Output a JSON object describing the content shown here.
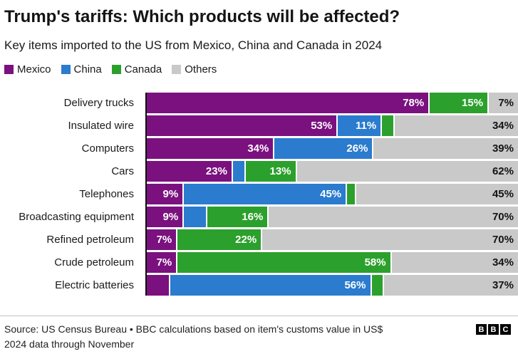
{
  "chart_data": {
    "type": "bar",
    "variant": "horizontal-stacked-100",
    "title": "Trump's tariffs: Which products will be affected?",
    "subtitle": "Key items imported to the US from Mexico, China and Canada in 2024",
    "unit": "%",
    "legend_position": "top-left",
    "legend": [
      {
        "label": "Mexico",
        "color": "#7a117f"
      },
      {
        "label": "China",
        "color": "#2b7bce"
      },
      {
        "label": "Canada",
        "color": "#2ca02c"
      },
      {
        "label": "Others",
        "color": "#c9c9c9"
      }
    ],
    "rows": [
      {
        "category": "Delivery trucks",
        "segments": [
          {
            "series": "Mexico",
            "value": 78,
            "label": "78%"
          },
          {
            "series": "Canada",
            "value": 15,
            "label": "15%"
          },
          {
            "series": "Others",
            "value": 7,
            "label": "7%"
          }
        ]
      },
      {
        "category": "Insulated wire",
        "segments": [
          {
            "series": "Mexico",
            "value": 53,
            "label": "53%"
          },
          {
            "series": "China",
            "value": 11,
            "label": "11%"
          },
          {
            "series": "Canada",
            "value": 2
          },
          {
            "series": "Others",
            "value": 34,
            "label": "34%"
          }
        ]
      },
      {
        "category": "Computers",
        "segments": [
          {
            "series": "Mexico",
            "value": 34,
            "label": "34%"
          },
          {
            "series": "China",
            "value": 26,
            "label": "26%"
          },
          {
            "series": "Others",
            "value": 39,
            "label": "39%"
          }
        ]
      },
      {
        "category": "Cars",
        "segments": [
          {
            "series": "Mexico",
            "value": 23,
            "label": "23%"
          },
          {
            "series": "China",
            "value": 2
          },
          {
            "series": "Canada",
            "value": 13,
            "label": "13%"
          },
          {
            "series": "Others",
            "value": 62,
            "label": "62%"
          }
        ]
      },
      {
        "category": "Telephones",
        "segments": [
          {
            "series": "Mexico",
            "value": 9,
            "label": "9%"
          },
          {
            "series": "China",
            "value": 45,
            "label": "45%"
          },
          {
            "series": "Canada",
            "value": 1
          },
          {
            "series": "Others",
            "value": 45,
            "label": "45%"
          }
        ]
      },
      {
        "category": "Broadcasting equipment",
        "segments": [
          {
            "series": "Mexico",
            "value": 9,
            "label": "9%"
          },
          {
            "series": "China",
            "value": 5
          },
          {
            "series": "Canada",
            "value": 16,
            "label": "16%"
          },
          {
            "series": "Others",
            "value": 70,
            "label": "70%"
          }
        ]
      },
      {
        "category": "Refined petroleum",
        "segments": [
          {
            "series": "Mexico",
            "value": 7,
            "label": "7%"
          },
          {
            "series": "Canada",
            "value": 22,
            "label": "22%"
          },
          {
            "series": "Others",
            "value": 70,
            "label": "70%"
          }
        ]
      },
      {
        "category": "Crude petroleum",
        "segments": [
          {
            "series": "Mexico",
            "value": 7,
            "label": "7%"
          },
          {
            "series": "Canada",
            "value": 58,
            "label": "58%"
          },
          {
            "series": "Others",
            "value": 34,
            "label": "34%"
          }
        ]
      },
      {
        "category": "Electric batteries",
        "segments": [
          {
            "series": "Mexico",
            "value": 5
          },
          {
            "series": "China",
            "value": 56,
            "label": "56%"
          },
          {
            "series": "Canada",
            "value": 2
          },
          {
            "series": "Others",
            "value": 37,
            "label": "37%"
          }
        ]
      }
    ]
  },
  "footer": {
    "source_line1": "Source: US Census Bureau • BBC calculations based on item's customs value in US$",
    "source_line2": "2024 data through November",
    "logo_letters": [
      "B",
      "B",
      "C"
    ]
  }
}
